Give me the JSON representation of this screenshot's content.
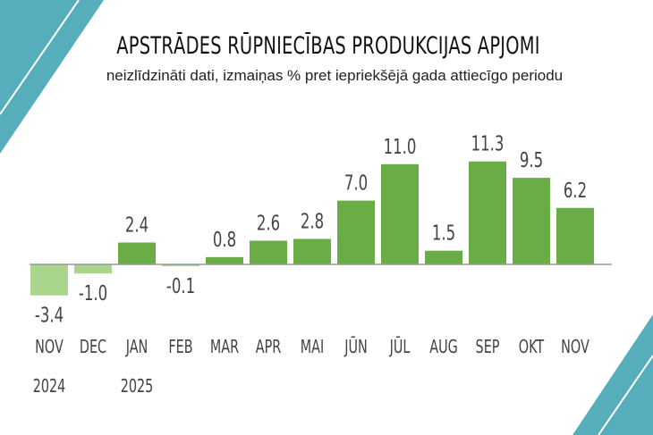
{
  "header": {
    "title": "APSTRĀDES RŪPNIECĪBAS PRODUKCIJAS APJOMI",
    "subtitle": "neizlīdzināti dati, izmaiņas % pret iepriekšējā gada attiecīgo periodu"
  },
  "chart_data": {
    "type": "bar",
    "title": "APSTRĀDES RŪPNIECĪBAS PRODUKCIJAS APJOMI",
    "subtitle": "neizlīdzināti dati, izmaiņas % pret iepriekšējā gada attiecīgo periodu",
    "categories": [
      "NOV",
      "DEC",
      "JAN",
      "FEB",
      "MAR",
      "APR",
      "MAI",
      "JŪN",
      "JŪL",
      "AUG",
      "SEP",
      "OKT",
      "NOV"
    ],
    "year_labels": [
      "2024",
      "",
      "2025",
      "",
      "",
      "",
      "",
      "",
      "",
      "",
      "",
      "",
      ""
    ],
    "values": [
      -3.4,
      -1.0,
      2.4,
      -0.1,
      0.8,
      2.6,
      2.8,
      7.0,
      11.0,
      1.5,
      11.3,
      9.5,
      6.2
    ],
    "value_labels": [
      "-3.4",
      "-1.0",
      "2.4",
      "-0.1",
      "0.8",
      "2.6",
      "2.8",
      "7.0",
      "11.0",
      "1.5",
      "11.3",
      "9.5",
      "6.2"
    ],
    "colors": {
      "positive": "#6aad46",
      "negative": "#a9d58c",
      "axis": "#999999",
      "decoration": "#56adbc"
    },
    "grid": false,
    "legend": "none",
    "xlabel": "",
    "ylabel": ""
  }
}
